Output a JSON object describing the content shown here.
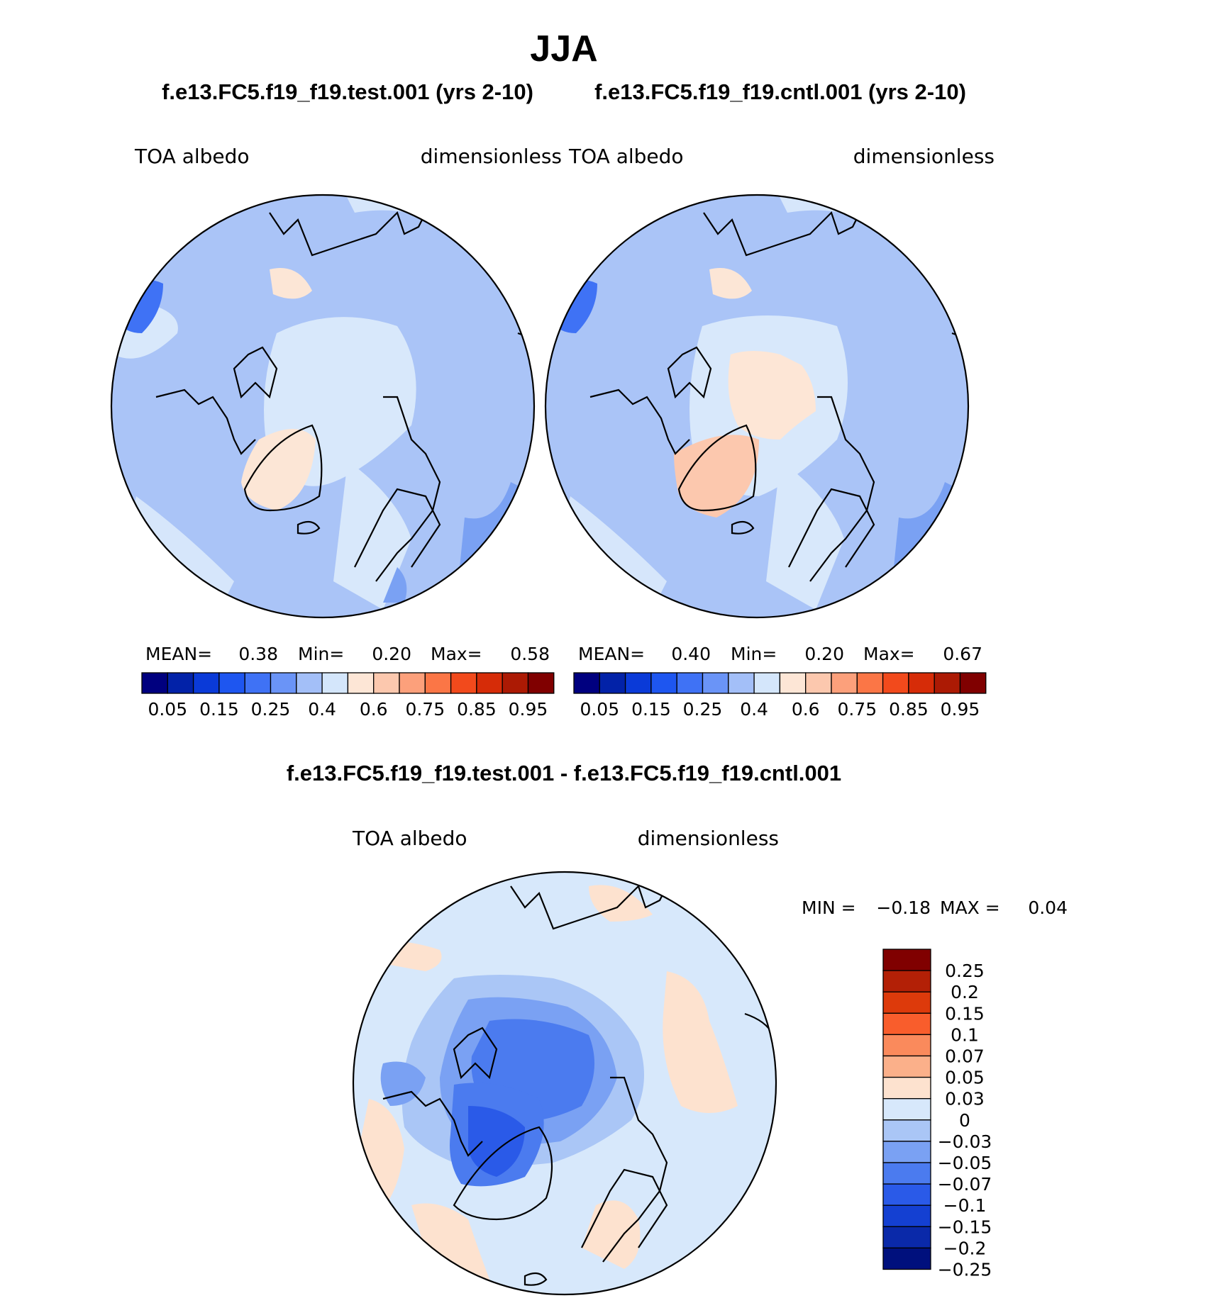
{
  "season": "JJA",
  "panels": [
    {
      "case_title": "f.e13.FC5.f19_f19.test.001 (yrs 2-10)",
      "variable": "TOA albedo",
      "units": "dimensionless",
      "stats": {
        "mean_label": "MEAN=",
        "mean": "0.38",
        "min_label": "Min=",
        "min": "0.20",
        "max_label": "Max=",
        "max": "0.58"
      }
    },
    {
      "case_title": "f.e13.FC5.f19_f19.cntl.001 (yrs 2-10)",
      "variable": "TOA albedo",
      "units": "dimensionless",
      "stats": {
        "mean_label": "MEAN=",
        "mean": "0.40",
        "min_label": "Min=",
        "min": "0.20",
        "max_label": "Max=",
        "max": "0.67"
      }
    }
  ],
  "abs_colorbar": {
    "colors": [
      "#00007f",
      "#0222a8",
      "#0a3ad8",
      "#1e56f0",
      "#3f72f5",
      "#6a94f7",
      "#a3bff8",
      "#d4e6fb",
      "#fde6d6",
      "#fcc8ae",
      "#fca07b",
      "#fb7646",
      "#f24a1c",
      "#d62c08",
      "#ac1a04",
      "#800000"
    ],
    "tick_labels": [
      "0.05",
      "0.15",
      "0.25",
      "0.4",
      "0.6",
      "0.75",
      "0.85",
      "0.95"
    ]
  },
  "diff_panel": {
    "title": "f.e13.FC5.f19_f19.test.001 - f.e13.FC5.f19_f19.cntl.001",
    "variable": "TOA albedo",
    "units": "dimensionless",
    "min_label": "MIN =",
    "min": "−0.18",
    "max_label": "MAX =",
    "max": "0.04"
  },
  "diff_colorbar": {
    "colors": [
      "#800000",
      "#b32006",
      "#dd3a0b",
      "#f95d2c",
      "#fa8a5c",
      "#fbb08a",
      "#fde2cf",
      "#d7e8fb",
      "#aac6f6",
      "#7aa1f3",
      "#4b7bef",
      "#2a5ae8",
      "#1440d2",
      "#0a29a9",
      "#00107d"
    ],
    "tick_labels": [
      "0.25",
      "0.2",
      "0.15",
      "0.1",
      "0.07",
      "0.05",
      "0.03",
      "0",
      "−0.03",
      "−0.05",
      "−0.07",
      "−0.1",
      "−0.15",
      "−0.2",
      "−0.25"
    ]
  }
}
